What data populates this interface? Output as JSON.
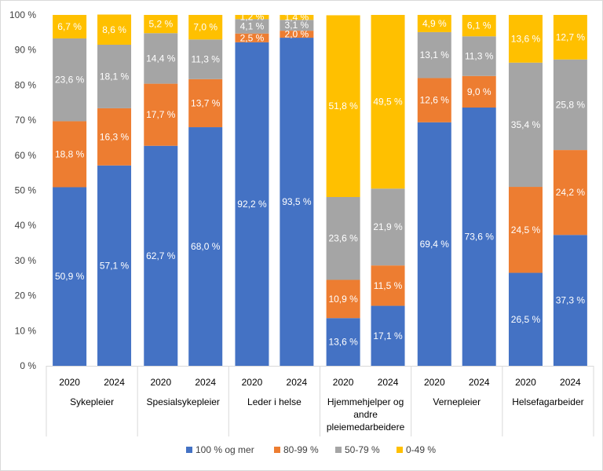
{
  "chart_data": {
    "type": "bar",
    "stacked": true,
    "percent_scale": true,
    "groups": [
      {
        "name": "Sykepleier",
        "name_lines": [
          "Sykepleier"
        ],
        "years": [
          "2020",
          "2024"
        ]
      },
      {
        "name": "Spesialsykepleier",
        "name_lines": [
          "Spesialsykepleier"
        ],
        "years": [
          "2020",
          "2024"
        ]
      },
      {
        "name": "Leder i helse",
        "name_lines": [
          "Leder i helse"
        ],
        "years": [
          "2020",
          "2024"
        ]
      },
      {
        "name": "Hjemmehjelper og andre pleiemedarbeidere",
        "name_lines": [
          "Hjemmehjelper og",
          "andre",
          "pleiemedarbeidere"
        ],
        "years": [
          "2020",
          "2024"
        ]
      },
      {
        "name": "Vernepleier",
        "name_lines": [
          "Vernepleier"
        ],
        "years": [
          "2020",
          "2024"
        ]
      },
      {
        "name": "Helsefagarbeider",
        "name_lines": [
          "Helsefagarbeider"
        ],
        "years": [
          "2020",
          "2024"
        ]
      }
    ],
    "series": [
      {
        "name": "100 % og mer",
        "color": "#4472c4",
        "values": [
          50.9,
          57.1,
          62.7,
          68.0,
          92.2,
          93.5,
          13.6,
          17.1,
          69.4,
          73.6,
          26.5,
          37.3
        ],
        "labels": [
          "50,9 %",
          "57,1 %",
          "62,7 %",
          "68,0 %",
          "92,2 %",
          "93,5 %",
          "13,6 %",
          "17,1 %",
          "69,4 %",
          "73,6 %",
          "26,5 %",
          "37,3 %"
        ]
      },
      {
        "name": "80-99 %",
        "color": "#ed7d31",
        "values": [
          18.8,
          16.3,
          17.7,
          13.7,
          2.5,
          2.0,
          10.9,
          11.5,
          12.6,
          9.0,
          24.5,
          24.2
        ],
        "labels": [
          "18,8 %",
          "16,3 %",
          "17,7 %",
          "13,7 %",
          "2,5 %",
          "2,0 %",
          "10,9 %",
          "11,5 %",
          "12,6 %",
          "9,0 %",
          "24,5 %",
          "24,2 %"
        ]
      },
      {
        "name": "50-79 %",
        "color": "#a5a5a5",
        "values": [
          23.6,
          18.1,
          14.4,
          11.3,
          4.1,
          3.1,
          23.6,
          21.9,
          13.1,
          11.3,
          35.4,
          25.8
        ],
        "labels": [
          "23,6 %",
          "18,1 %",
          "14,4 %",
          "11,3 %",
          "4,1 %",
          "3,1 %",
          "23,6 %",
          "21,9 %",
          "13,1 %",
          "11,3 %",
          "35,4 %",
          "25,8 %"
        ]
      },
      {
        "name": "0-49 %",
        "color": "#ffc000",
        "values": [
          6.7,
          8.6,
          5.2,
          7.0,
          1.2,
          1.4,
          51.8,
          49.5,
          4.9,
          6.1,
          13.6,
          12.7
        ],
        "labels": [
          "6,7 %",
          "8,6 %",
          "5,2 %",
          "7,0 %",
          "1,2 %",
          "1,4 %",
          "51,8 %",
          "49,5 %",
          "4,9 %",
          "6,1 %",
          "13,6 %",
          "12,7 %"
        ]
      }
    ],
    "y_ticks": [
      "0 %",
      "10 %",
      "20 %",
      "30 %",
      "40 %",
      "50 %",
      "60 %",
      "70 %",
      "80 %",
      "90 %",
      "100 %"
    ],
    "ylim": [
      0,
      100
    ],
    "grid": false,
    "legend_position": "bottom"
  }
}
